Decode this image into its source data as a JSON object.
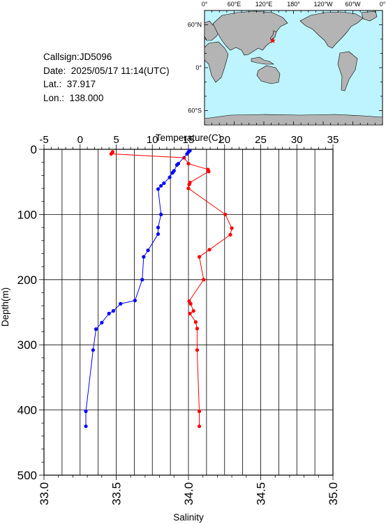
{
  "info": {
    "callsign": "Callsign:JD5096",
    "date": "Date:  2025/05/17 11:14(UTC)",
    "lat": "Lat.:  37.917",
    "lon": "Lon.:  138.000"
  },
  "map": {
    "top_labels": [
      "0°",
      "60°E",
      "120°E",
      "180°",
      "120°W",
      "60°W",
      "0°"
    ],
    "lat_labels": [
      "60°N",
      "0°",
      "60°S"
    ],
    "ocean_color": "#bdf4ff",
    "land_color": "#b4b4b4",
    "marker_color": "#ff0000",
    "station": {
      "lon": 138.0,
      "lat": 37.917
    }
  },
  "chart_data": {
    "type": "line",
    "y_axis": {
      "label": "Depth(m)",
      "range": [
        0,
        500
      ],
      "ticks": [
        0,
        100,
        200,
        300,
        400,
        500
      ]
    },
    "top_axis": {
      "label": "Temperature(C)",
      "range": [
        -5,
        35
      ],
      "ticks": [
        -5,
        0,
        5,
        10,
        15,
        20,
        25,
        30,
        35
      ]
    },
    "bottom_axis": {
      "label": "Salinity",
      "range": [
        33.0,
        35.0
      ],
      "ticks": [
        "33.0",
        "33.5",
        "34.0",
        "34.5",
        "35.0"
      ]
    },
    "grid": true,
    "series": [
      {
        "axis": "temperature",
        "color": "#ff0000",
        "points": [
          [
            4.5,
            4
          ],
          [
            4.3,
            7
          ],
          [
            14.4,
            13
          ],
          [
            15.0,
            22
          ],
          [
            17.7,
            31
          ],
          [
            17.8,
            34
          ],
          [
            15.2,
            51
          ],
          [
            15.1,
            54
          ],
          [
            15.0,
            60
          ],
          [
            20.1,
            100
          ],
          [
            21.0,
            121
          ],
          [
            20.8,
            131
          ],
          [
            17.9,
            154
          ],
          [
            16.5,
            165
          ],
          [
            17.1,
            200
          ],
          [
            15.1,
            233
          ],
          [
            15.3,
            237
          ],
          [
            15.7,
            248
          ],
          [
            15.2,
            252
          ],
          [
            16.0,
            265
          ],
          [
            16.2,
            275
          ],
          [
            16.2,
            308
          ],
          [
            16.5,
            402
          ],
          [
            16.5,
            425
          ]
        ]
      },
      {
        "axis": "salinity",
        "color": "#0000ff",
        "points": [
          [
            34.01,
            2
          ],
          [
            34.0,
            4
          ],
          [
            33.99,
            7
          ],
          [
            33.93,
            22
          ],
          [
            33.92,
            24
          ],
          [
            33.9,
            33
          ],
          [
            33.89,
            36
          ],
          [
            33.87,
            43
          ],
          [
            33.83,
            52
          ],
          [
            33.81,
            56
          ],
          [
            33.79,
            61
          ],
          [
            33.81,
            100
          ],
          [
            33.79,
            120
          ],
          [
            33.79,
            130
          ],
          [
            33.72,
            155
          ],
          [
            33.69,
            165
          ],
          [
            33.68,
            200
          ],
          [
            33.63,
            232
          ],
          [
            33.53,
            237
          ],
          [
            33.48,
            248
          ],
          [
            33.45,
            252
          ],
          [
            33.4,
            266
          ],
          [
            33.36,
            276
          ],
          [
            33.34,
            308
          ],
          [
            33.29,
            402
          ],
          [
            33.29,
            425
          ]
        ]
      }
    ]
  }
}
